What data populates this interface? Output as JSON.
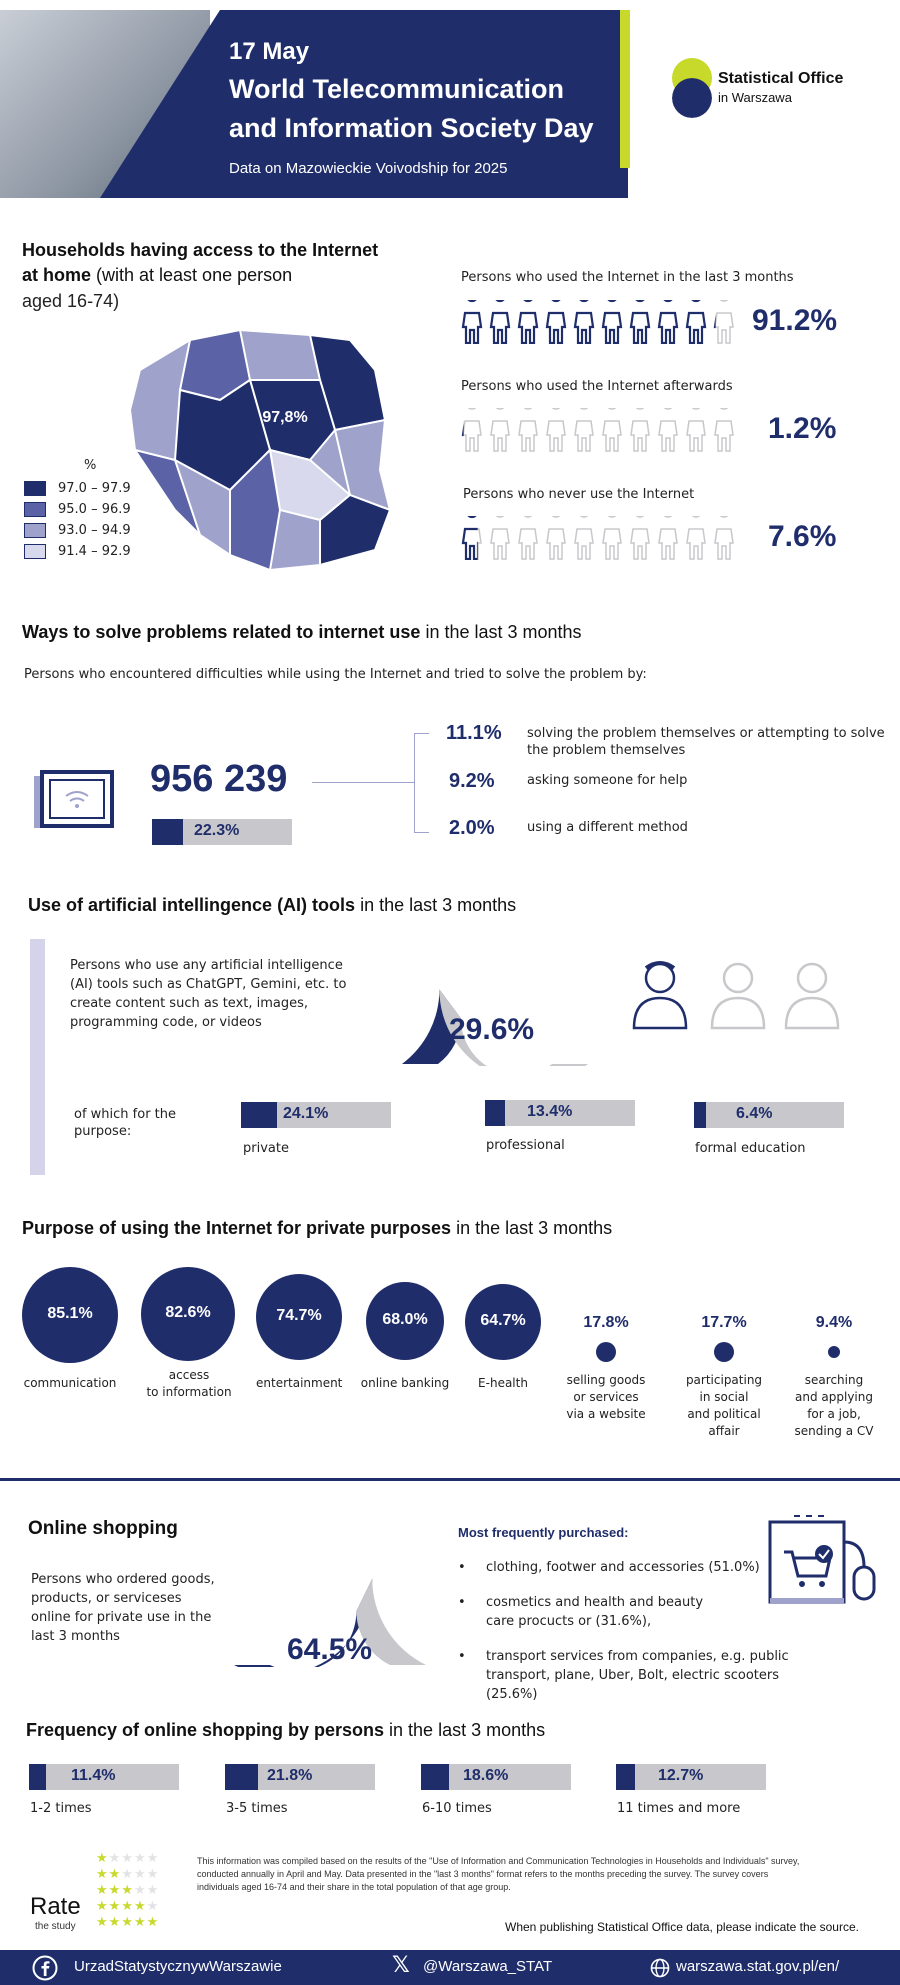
{
  "header": {
    "date": "17 May",
    "title_line1": "World Telecommunication",
    "title_line2": "and Information Society Day",
    "subtitle": "Data on Mazowieckie Voivodship for 2025",
    "logo_line1": "Statistical Office",
    "logo_line2": "in Warszawa",
    "accent_color": "#c7d92a",
    "brand_color": "#1f2d6b"
  },
  "households": {
    "title_bold1": "Households having access to the Internet",
    "title_bold2": "at home",
    "title_rest": " (with at least one person",
    "title_line3": "aged 16-74)",
    "map_value": "97,8%",
    "legend_unit": "%",
    "legend": [
      {
        "range": "97.0 – 97.9",
        "color": "#1f2d6b"
      },
      {
        "range": "95.0 – 96.9",
        "color": "#5b63a6"
      },
      {
        "range": "93.0 – 94.9",
        "color": "#9fa3cc"
      },
      {
        "range": "91.4 – 92.9",
        "color": "#d8d9ec"
      }
    ]
  },
  "usage": [
    {
      "label": "Persons who used the Internet in the last 3 months",
      "value": "91.2%",
      "share": 0.912
    },
    {
      "label": "Persons who used the Internet afterwards",
      "value": "1.2%",
      "share": 0.012
    },
    {
      "label": "Persons who never use the Internet",
      "value": "7.6%",
      "share": 0.076
    }
  ],
  "problems": {
    "title_bold": "Ways to solve problems related to internet use",
    "title_rest": " in the last 3 months",
    "intro": "Persons who encountered difficulties while using the Internet and tried to solve the problem by:",
    "total": "956 239",
    "total_share": "22.3%",
    "total_share_value": 22.3,
    "items": [
      {
        "value": "11.1%",
        "label_line1": "solving the problem themselves or attempting to solve",
        "label_line2": "the problem themselves"
      },
      {
        "value": "9.2%",
        "label_line1": "asking someone for help",
        "label_line2": ""
      },
      {
        "value": "2.0%",
        "label_line1": "using a different method",
        "label_line2": ""
      }
    ]
  },
  "ai": {
    "title_bold": "Use of artificial intellingence (AI) tools",
    "title_rest": " in the last 3 months",
    "desc_lines": [
      "Persons who use any artificial intelligence",
      "(AI) tools such as ChatGPT, Gemini, etc. to",
      "create content such as text, images,",
      "programming code, or videos"
    ],
    "value": "29.6%",
    "share": 0.296,
    "purpose_label_line1": "of which for the",
    "purpose_label_line2": "purpose:",
    "purposes": [
      {
        "value": "24.1%",
        "label": "private",
        "share": 24.1
      },
      {
        "value": "13.4%",
        "label": "professional",
        "share": 13.4
      },
      {
        "value": "6.4%",
        "label": "formal education",
        "share": 6.4
      }
    ]
  },
  "private_purposes": {
    "title_bold": "Purpose of using the Internet for private purposes",
    "title_rest": " in the last 3 months",
    "items": [
      {
        "value": "85.1%",
        "lines": [
          "communication"
        ]
      },
      {
        "value": "82.6%",
        "lines": [
          "access",
          "to information"
        ]
      },
      {
        "value": "74.7%",
        "lines": [
          "entertainment"
        ]
      },
      {
        "value": "68.0%",
        "lines": [
          "online banking"
        ]
      },
      {
        "value": "64.7%",
        "lines": [
          "E-health"
        ]
      },
      {
        "value": "17.8%",
        "lines": [
          "selling goods",
          "or services",
          "via a website"
        ]
      },
      {
        "value": "17.7%",
        "lines": [
          "participating",
          "in social",
          "and political",
          "affair"
        ]
      },
      {
        "value": "9.4%",
        "lines": [
          "searching",
          "and applying",
          "for a job,",
          "sending a CV"
        ]
      }
    ]
  },
  "shopping": {
    "title": "Online shopping",
    "desc_lines": [
      "Persons who ordered goods,",
      "products, or serviceses",
      "online for private use in the",
      "last 3 months"
    ],
    "value": "64.5%",
    "share": 0.645,
    "most_title": "Most frequently purchased:",
    "items": [
      {
        "lines": [
          "clothing, footwer and accessories (51.0%)"
        ]
      },
      {
        "lines": [
          "cosmetics and health and beauty",
          "care procucts or (31.6%),"
        ]
      },
      {
        "lines": [
          "transport services from companies, e.g. public",
          "transport, plane, Uber, Bolt, electric scooters",
          "(25.6%)"
        ]
      }
    ]
  },
  "frequency": {
    "title_bold": "Frequency of online shopping by persons",
    "title_rest": " in the last 3 months",
    "items": [
      {
        "value": "11.4%",
        "label": "1-2 times"
      },
      {
        "value": "21.8%",
        "label": "3-5 times"
      },
      {
        "value": "18.6%",
        "label": "6-10 times"
      },
      {
        "value": "12.7%",
        "label": "11 times and more"
      }
    ]
  },
  "footnote": {
    "lines": [
      "This information was compiled based on the results of the \"Use of Information and Communication Technologies in Households and Individuals\" survey,",
      "conducted annually in April and May. Data presented in the \"last 3 months\" format refers to the months preceding the survey. The survey covers",
      "individuals aged 16-74 and their share in the total population of that age group."
    ],
    "source_note": "When publishing Statistical Office data, please indicate the source.",
    "rate_title": "Rate",
    "rate_sub": "the study"
  },
  "footer": {
    "facebook": "UrzadStatystycznywWarszawie",
    "x_handle": "@Warszawa_STAT",
    "website": "warszawa.stat.gov.pl/en/"
  }
}
